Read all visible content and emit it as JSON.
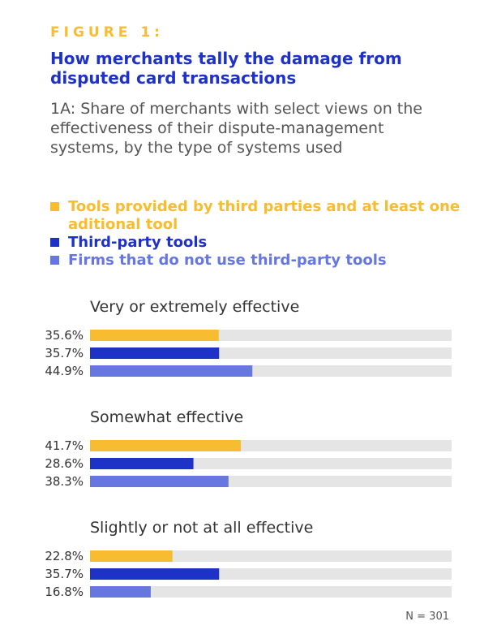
{
  "header": {
    "figure_label": "FIGURE 1:",
    "title": "How merchants tally the damage from disputed card transactions",
    "subtitle": "1A: Share of merchants with select views on the effectiveness of their dispute-management systems, by the type of systems used"
  },
  "legend": [
    {
      "label": "Tools provided by third parties and at least one aditional tool",
      "color": "#F7BC30"
    },
    {
      "label": "Third-party tools",
      "color": "#1F32C8"
    },
    {
      "label": "Firms that do not use third-party tools",
      "color": "#6678E0"
    }
  ],
  "footer": {
    "n_note": "N = 301"
  },
  "chart_data": {
    "type": "bar",
    "orientation": "horizontal",
    "value_max": 100,
    "track_color": "#E5E5E5",
    "groups": [
      {
        "title": "Very or extremely effective",
        "values": [
          35.6,
          35.7,
          44.9
        ],
        "labels": [
          "35.6%",
          "35.7%",
          "44.9%"
        ]
      },
      {
        "title": "Somewhat effective",
        "values": [
          41.7,
          28.6,
          38.3
        ],
        "labels": [
          "41.7%",
          "28.6%",
          "38.3%"
        ]
      },
      {
        "title": "Slightly or not at all effective",
        "values": [
          22.8,
          35.7,
          16.8
        ],
        "labels": [
          "22.8%",
          "35.7%",
          "16.8%"
        ]
      }
    ],
    "series_colors": [
      "#F7BC30",
      "#1F32C8",
      "#6678E0"
    ]
  }
}
